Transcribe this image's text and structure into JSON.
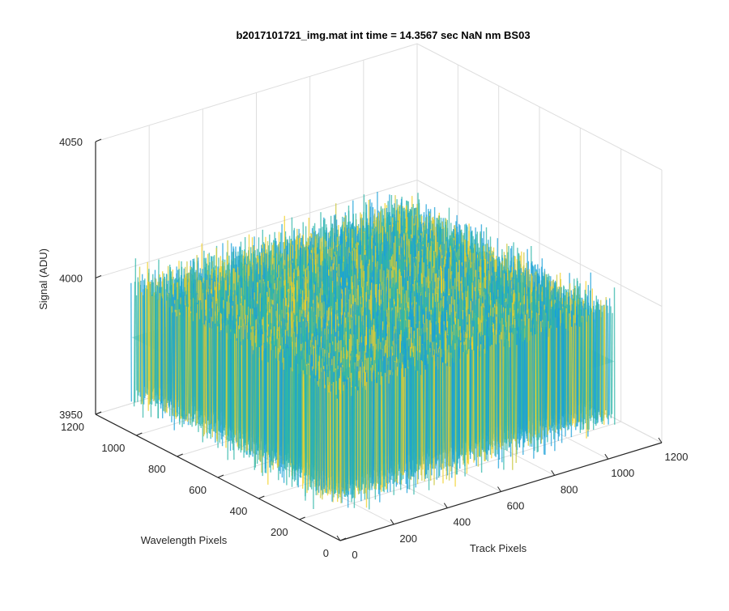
{
  "chart_data": {
    "type": "surface",
    "title": "b2017101721_img.mat int time = 14.3567 sec  NaN nm BS03",
    "xlabel": "Track Pixels",
    "ylabel": "Wavelength Pixels",
    "zlabel": "Signal (ADU)",
    "xlim": [
      0,
      1200
    ],
    "ylim": [
      0,
      1200
    ],
    "zlim": [
      3950,
      4050
    ],
    "xticks": [
      "0",
      "200",
      "400",
      "600",
      "800",
      "1000",
      "1200"
    ],
    "yticks": [
      "0",
      "200",
      "400",
      "600",
      "800",
      "1000",
      "1200"
    ],
    "zticks": [
      "3950",
      "4000",
      "4050"
    ],
    "data_extent": {
      "x": [
        0,
        1024
      ],
      "y": [
        0,
        1024
      ]
    },
    "signal_mean": 3985,
    "signal_spread": [
      3960,
      4025
    ],
    "grid": true,
    "colormap": "parula",
    "colors": {
      "low": "#1aa0d8",
      "mid": "#2fb6a8",
      "high": "#c9c63a",
      "peak": "#f2d028"
    }
  }
}
